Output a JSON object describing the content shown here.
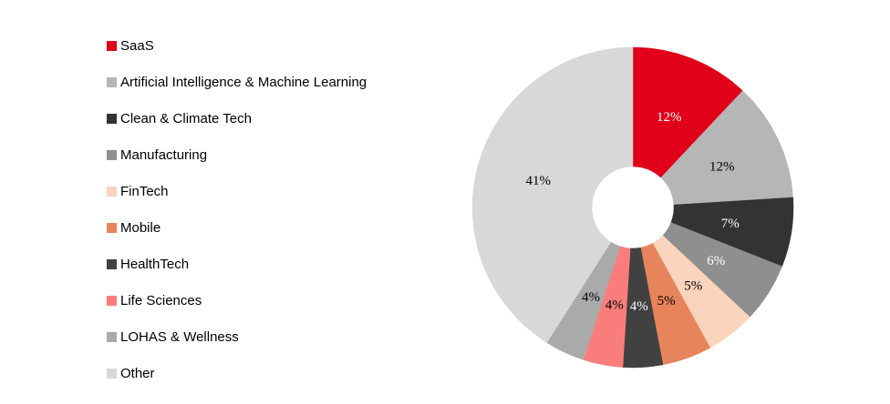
{
  "chart_data": {
    "type": "pie",
    "subtype": "donut",
    "title": "",
    "legend_position": "left",
    "direction": "clockwise",
    "start_angle_deg": 0,
    "donut_hole_ratio": 0.26,
    "background_color": "#FFFFFF",
    "categories": [
      "SaaS",
      "Artificial Intelligence & Machine Learning",
      "Clean & Climate Tech",
      "Manufacturing",
      "FinTech",
      "Mobile",
      "HealthTech",
      "Life Sciences",
      "LOHAS & Wellness",
      "Other"
    ],
    "values": [
      12,
      12,
      7,
      6,
      5,
      5,
      4,
      4,
      4,
      41
    ],
    "unit": "%",
    "labels": [
      "12%",
      "12%",
      "7%",
      "6%",
      "5%",
      "5%",
      "4%",
      "4%",
      "4%",
      "41%"
    ],
    "colors": [
      "#E00019",
      "#B6B6B6",
      "#333333",
      "#8F8F8F",
      "#FAD4BC",
      "#E8845B",
      "#414141",
      "#F97E7B",
      "#AAAAAA",
      "#D8D8D8"
    ],
    "label_colors": [
      "#FFFFFF",
      "#000000",
      "#FFFFFF",
      "#FFFFFF",
      "#000000",
      "#000000",
      "#FFFFFF",
      "#000000",
      "#000000",
      "#000000"
    ]
  }
}
